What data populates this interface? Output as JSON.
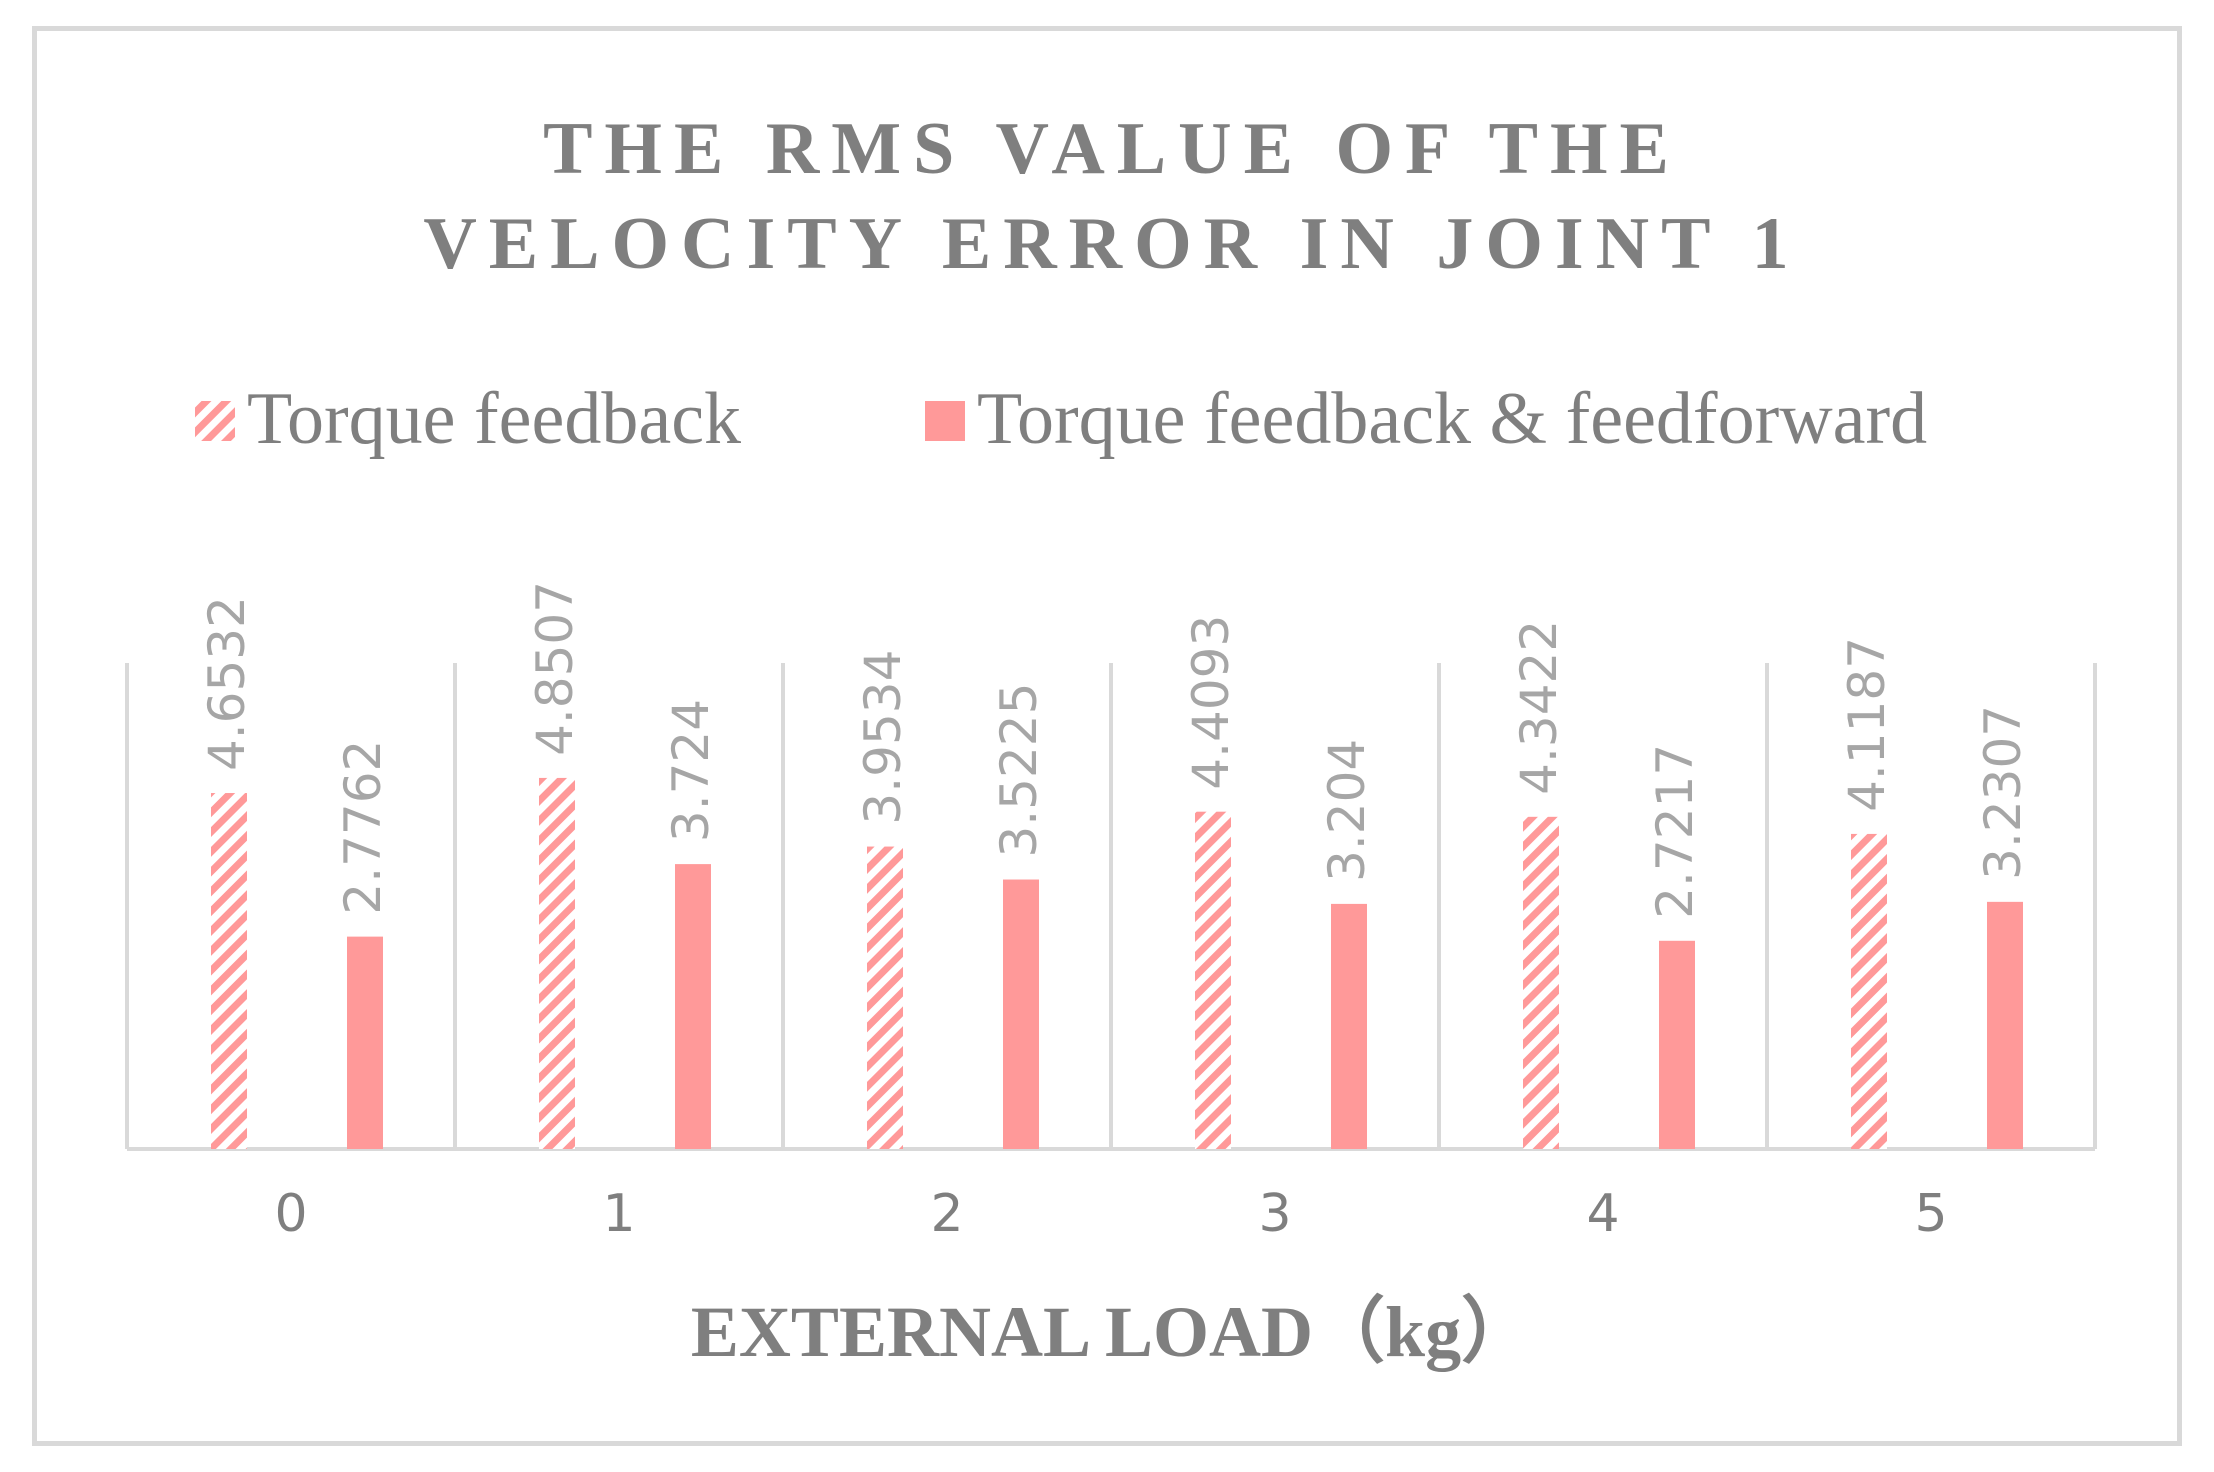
{
  "chart_data": {
    "type": "bar",
    "title_lines": [
      "THE RMS VALUE OF THE",
      "VELOCITY ERROR IN JOINT 1"
    ],
    "xlabel": "EXTERNAL LOAD（kg）",
    "ylabel": "",
    "categories": [
      "0",
      "1",
      "2",
      "3",
      "4",
      "5"
    ],
    "series": [
      {
        "name": "Torque feedback",
        "values": [
          4.6532,
          4.8507,
          3.9534,
          4.4093,
          4.3422,
          4.1187
        ],
        "labels": [
          "4.6532",
          "4.8507",
          "3.9534",
          "4.4093",
          "4.3422",
          "4.1187"
        ],
        "pattern": "diagonal-hatch",
        "color": "#ff9999"
      },
      {
        "name": "Torque feedback & feedforward",
        "values": [
          2.7762,
          3.724,
          3.5225,
          3.204,
          2.7217,
          3.2307
        ],
        "labels": [
          "2.7762",
          "3.724",
          "3.5225",
          "3.204",
          "2.7217",
          "3.2307"
        ],
        "pattern": "solid",
        "color": "#ff9999"
      }
    ],
    "ylim": [
      0,
      6
    ],
    "grid": false,
    "category_separators": true,
    "legend_position": "top",
    "axis_color": "#d9d9d9",
    "text_color": "#7f7f7f",
    "value_label_color": "#a6a6a6"
  }
}
